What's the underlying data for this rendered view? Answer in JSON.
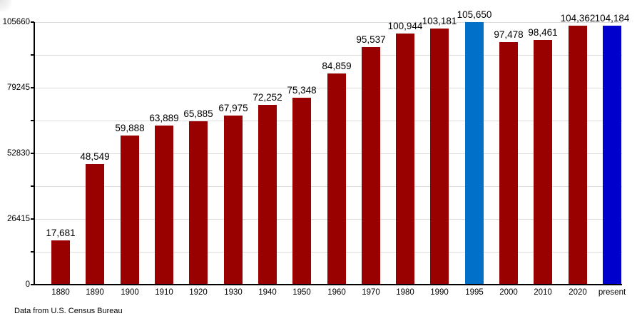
{
  "footer": {
    "note": "Data from U.S. Census Bureau"
  },
  "chart_data": {
    "type": "bar",
    "title": "",
    "xlabel": "",
    "ylabel": "",
    "categories": [
      "1880",
      "1890",
      "1900",
      "1910",
      "1920",
      "1930",
      "1940",
      "1950",
      "1960",
      "1970",
      "1980",
      "1990",
      "1995",
      "2000",
      "2010",
      "2020",
      "present"
    ],
    "values": [
      17681,
      48549,
      59888,
      63889,
      65885,
      67975,
      72252,
      75348,
      84859,
      95537,
      100944,
      103181,
      105650,
      97478,
      98461,
      104362,
      104184
    ],
    "value_labels": [
      "17,681",
      "48,549",
      "59,888",
      "63,889",
      "65,885",
      "67,975",
      "72,252",
      "75,348",
      "84,859",
      "95,537",
      "100,944",
      "103,181",
      "105,650",
      "97,478",
      "98,461",
      "104,362",
      "104,184"
    ],
    "bar_colors": [
      "#990000",
      "#990000",
      "#990000",
      "#990000",
      "#990000",
      "#990000",
      "#990000",
      "#990000",
      "#990000",
      "#990000",
      "#990000",
      "#990000",
      "#0070c9",
      "#990000",
      "#990000",
      "#990000",
      "#0000cc"
    ],
    "ylim": [
      0,
      105660
    ],
    "yticks": [
      0,
      26415,
      52830,
      79245,
      105660
    ],
    "ytick_labels": [
      "0",
      "26415",
      "52830",
      "79245",
      "105660"
    ],
    "grid_minor_step": 13207.5,
    "grid": true,
    "legend_position": "none",
    "colors": {
      "default_bar": "#990000",
      "highlight_1995": "#0070c9",
      "highlight_present": "#0000cc",
      "gridline": "#dcdcdc",
      "axis": "#000000",
      "text": "#000000",
      "background": "#ffffff"
    }
  }
}
